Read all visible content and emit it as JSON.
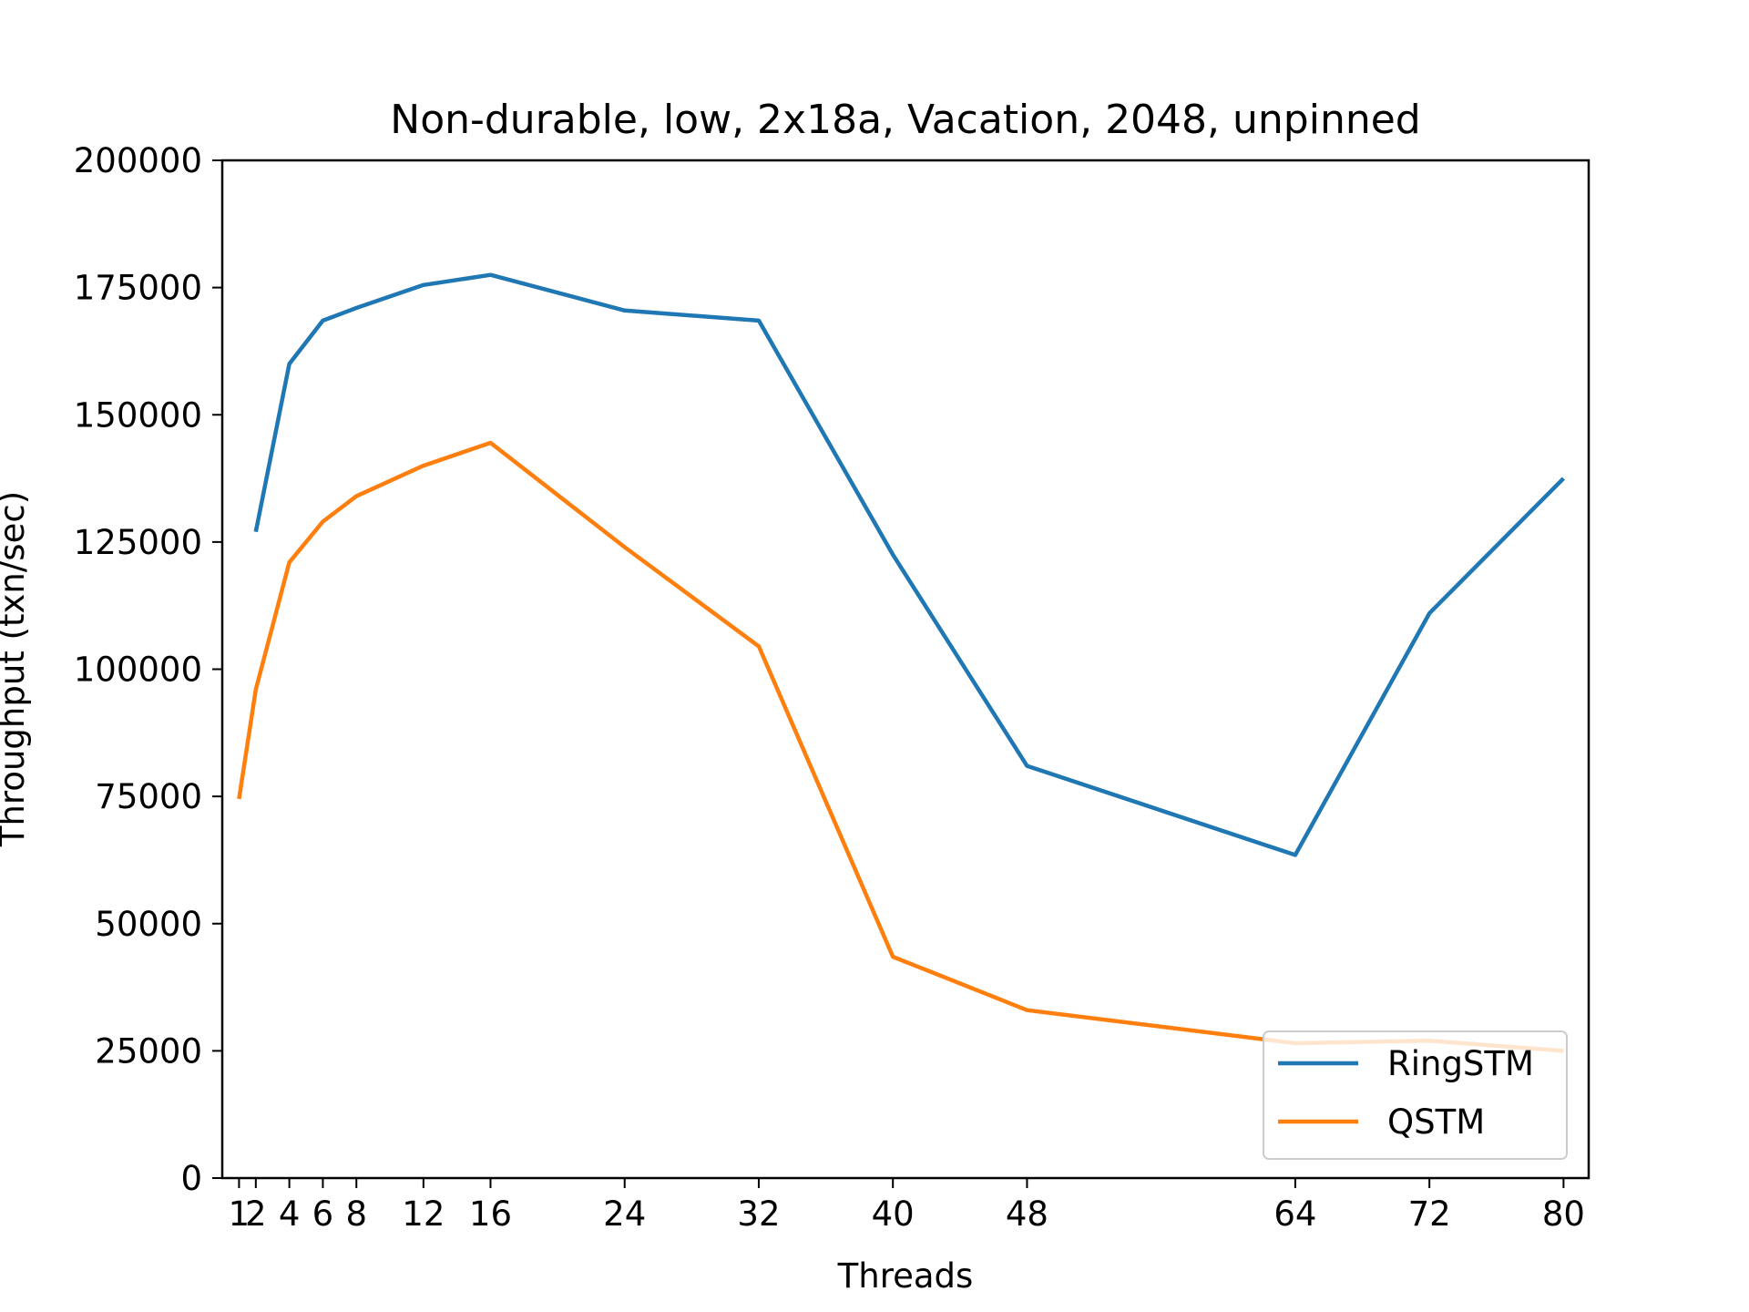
{
  "chart_data": {
    "type": "line",
    "title": "Non-durable, low, 2x18a, Vacation, 2048, unpinned",
    "xlabel": "Threads",
    "ylabel": "Throughput (txn/sec)",
    "xlim": [
      0,
      81.5
    ],
    "ylim": [
      0,
      200000
    ],
    "x": [
      1,
      2,
      4,
      6,
      8,
      12,
      16,
      24,
      32,
      40,
      48,
      64,
      72,
      80
    ],
    "x_tick_labels": [
      "1",
      "2",
      "4",
      "6",
      "8",
      "12",
      "16",
      "24",
      "32",
      "40",
      "48",
      "64",
      "72",
      "80"
    ],
    "y_ticks": [
      0,
      25000,
      50000,
      75000,
      100000,
      125000,
      150000,
      175000,
      200000
    ],
    "y_tick_labels": [
      "0",
      "25000",
      "50000",
      "75000",
      "100000",
      "125000",
      "150000",
      "175000",
      "200000"
    ],
    "series": [
      {
        "name": "RingSTM",
        "color": "#1f77b4",
        "x": [
          2,
          4,
          6,
          8,
          12,
          16,
          24,
          32,
          40,
          48,
          64,
          72,
          80
        ],
        "values": [
          127000,
          160000,
          168500,
          171000,
          175500,
          177500,
          170500,
          168500,
          122500,
          81000,
          63500,
          111000,
          137500
        ]
      },
      {
        "name": "QSTM",
        "color": "#ff7f0e",
        "x": [
          1,
          2,
          4,
          6,
          8,
          12,
          16,
          24,
          32,
          40,
          48,
          64,
          72,
          80
        ],
        "values": [
          74500,
          96000,
          121000,
          129000,
          134000,
          140000,
          144500,
          124000,
          104500,
          43500,
          33000,
          26500,
          27000,
          25000
        ]
      }
    ],
    "grid": false,
    "legend_position": "lower-right"
  }
}
